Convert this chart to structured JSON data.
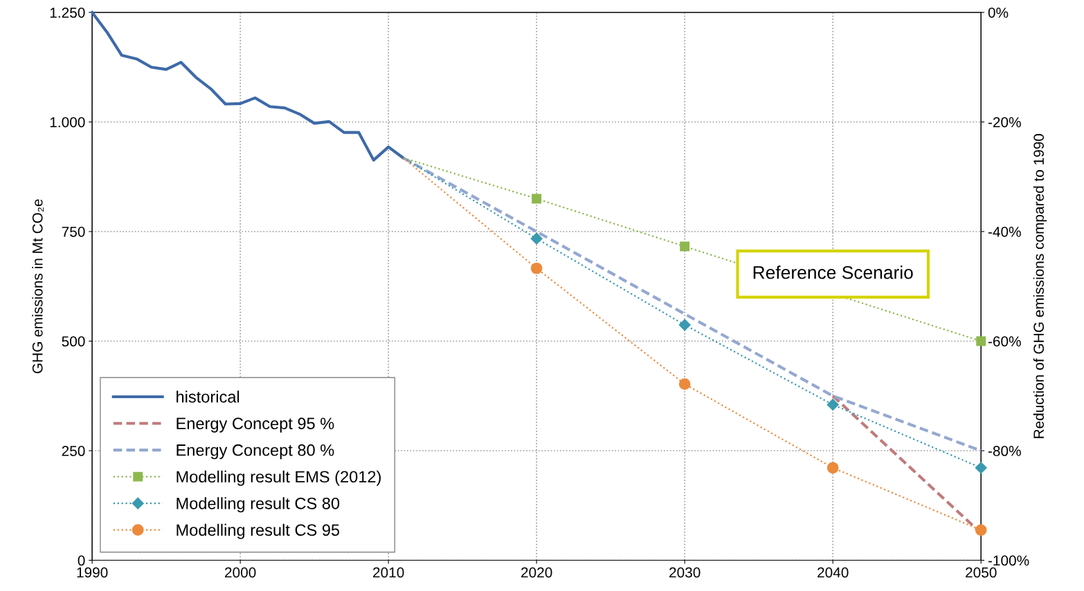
{
  "chart_data": {
    "type": "line",
    "ylabel": "GHG emissions in Mt CO₂e",
    "y2label": "Reduction of GHG emissions compared to 1990",
    "xlim": [
      1990,
      2050
    ],
    "xticks": [
      1990,
      2000,
      2010,
      2020,
      2030,
      2040,
      2050
    ],
    "ylim": [
      0,
      1250
    ],
    "yticks": [
      0,
      250,
      500,
      750,
      {
        "value": 1000,
        "label": "1.000"
      },
      {
        "value": 1250,
        "label": "1.250"
      }
    ],
    "y2lim": [
      -100,
      0
    ],
    "y2ticks": [
      {
        "value": -100,
        "label": "-100%"
      },
      {
        "value": -80,
        "label": "-80%"
      },
      {
        "value": -60,
        "label": "-60%"
      },
      {
        "value": -40,
        "label": "-40%"
      },
      {
        "value": -20,
        "label": "-20%"
      },
      {
        "value": 0,
        "label": "0%"
      }
    ],
    "grid": true,
    "legend": "bottom left",
    "annotations": [
      {
        "text": "Reference Scenario",
        "x": 2040,
        "y": 608
      }
    ],
    "series": [
      {
        "name": "historical",
        "color": "#3e6aa8",
        "line_style": "solid",
        "marker": "none",
        "x": [
          1990,
          1991,
          1992,
          1993,
          1994,
          1995,
          1996,
          1997,
          1998,
          1999,
          2000,
          2001,
          2002,
          2003,
          2004,
          2005,
          2006,
          2007,
          2008,
          2009,
          2010,
          2011
        ],
        "values": [
          1250,
          1205,
          1152,
          1144,
          1125,
          1120,
          1136,
          1102,
          1076,
          1041,
          1042,
          1055,
          1035,
          1032,
          1018,
          997,
          1001,
          976,
          976,
          913,
          943,
          918
        ]
      },
      {
        "name": "Energy Concept 95 %",
        "color": "#c07b7b",
        "line_style": "dashed",
        "marker": "none",
        "x": [
          2040,
          2050
        ],
        "values": [
          375,
          62
        ]
      },
      {
        "name": "Energy Concept 80 %",
        "color": "#94a8d0",
        "line_style": "dashed",
        "marker": "none",
        "x": [
          2011,
          2020,
          2030,
          2040,
          2050
        ],
        "values": [
          918,
          750,
          562,
          375,
          250
        ]
      },
      {
        "name": "Modelling result EMS (2012)",
        "color": "#8db84e",
        "line_style": "dotted",
        "marker": "square",
        "x": [
          2011,
          2020,
          2030,
          2050
        ],
        "values": [
          918,
          825,
          716,
          500
        ]
      },
      {
        "name": "Modelling result CS 80",
        "color": "#3a9ab0",
        "line_style": "dotted",
        "marker": "diamond",
        "x": [
          2011,
          2020,
          2030,
          2040,
          2050
        ],
        "values": [
          918,
          734,
          537,
          355,
          211
        ]
      },
      {
        "name": "Modelling result CS 95",
        "color": "#ec8a3c",
        "line_style": "dotted",
        "marker": "circle",
        "x": [
          2011,
          2020,
          2030,
          2040,
          2050
        ],
        "values": [
          918,
          666,
          402,
          211,
          69
        ]
      }
    ]
  }
}
